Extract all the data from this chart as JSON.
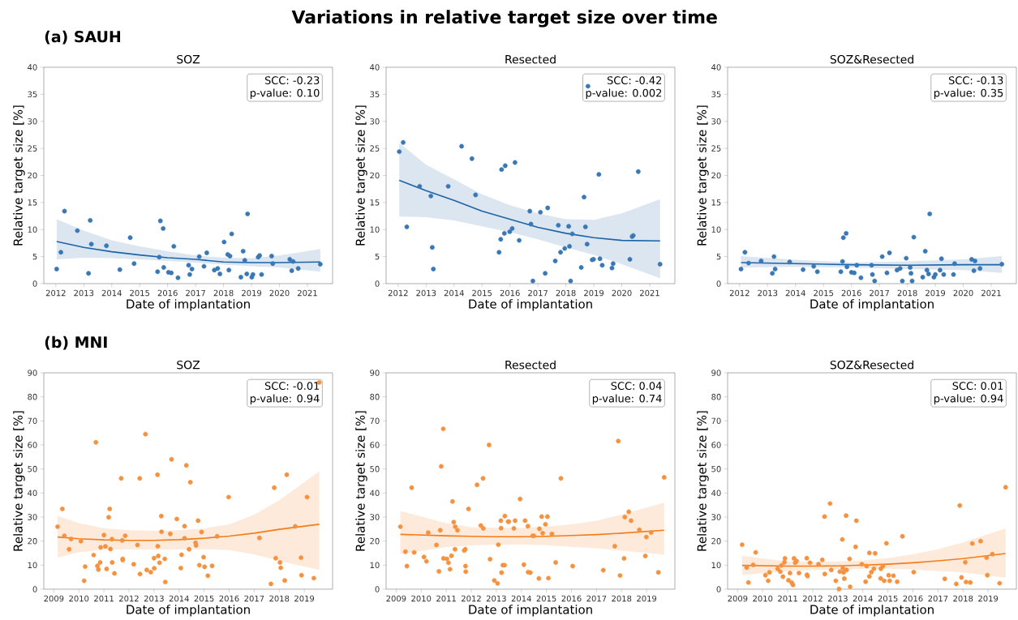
{
  "chart_data": [
    {
      "type": "scatter",
      "title": "SOZ",
      "xlabel": "Date of implantation",
      "ylabel": "Relative target size [%]",
      "xlim": [
        2011.57,
        2021.9
      ],
      "ylim": [
        0,
        40
      ],
      "xticks": [
        2012,
        2013,
        2014,
        2015,
        2016,
        2017,
        2018,
        2019,
        2020,
        2021
      ],
      "yticks": [
        0,
        5,
        10,
        15,
        20,
        25,
        30,
        35,
        40
      ],
      "annotations": [
        "Variations in relative target size over time",
        "(a) SAUH",
        "SCC: -0.23",
        "p-value: 0.10"
      ],
      "series": [
        {
          "color": "#3a78b5",
          "marker": "circle",
          "x": [
            2012.03,
            2012.18,
            2012.31,
            2012.77,
            2013.17,
            2013.23,
            2013.27,
            2013.81,
            2014.29,
            2014.66,
            2014.8,
            2015.64,
            2015.7,
            2015.74,
            2015.84,
            2015.86,
            2016.03,
            2016.13,
            2016.22,
            2016.37,
            2016.75,
            2016.79,
            2016.87,
            2017.13,
            2017.3,
            2017.4,
            2017.67,
            2017.79,
            2017.87,
            2018.02,
            2018.15,
            2018.19,
            2018.23,
            2018.29,
            2018.62,
            2018.7,
            2018.76,
            2018.83,
            2018.86,
            2019.01,
            2019.05,
            2019.24,
            2019.29,
            2019.36,
            2019.72,
            2019.76,
            2020.37,
            2020.44,
            2020.49,
            2020.67,
            2021.46
          ],
          "values": [
            2.7,
            5.8,
            13.4,
            9.8,
            1.9,
            11.7,
            7.3,
            7.0,
            2.6,
            8.5,
            3.7,
            2.2,
            4.9,
            11.6,
            10.2,
            3.0,
            2.1,
            2.0,
            6.9,
            1.1,
            3.4,
            1.7,
            2.7,
            5.0,
            3.2,
            5.7,
            2.5,
            2.8,
            1.8,
            7.7,
            5.4,
            2.5,
            5.1,
            9.2,
            1.2,
            6.0,
            4.3,
            1.8,
            12.9,
            1.2,
            1.7,
            4.9,
            5.2,
            1.7,
            5.1,
            3.7,
            4.5,
            2.4,
            4.1,
            2.8,
            3.6
          ]
        },
        {
          "type": "line",
          "color": "#1c64a6",
          "marker": "none",
          "line_style": "solid",
          "x": [
            2012.03,
            2013,
            2014,
            2015,
            2016,
            2017,
            2018,
            2019,
            2020,
            2021.46
          ],
          "values": [
            7.8,
            6.7,
            5.9,
            5.3,
            4.8,
            4.5,
            4.0,
            3.9,
            3.9,
            4.0
          ],
          "lower": [
            4.5,
            4.8,
            4.7,
            4.5,
            4.2,
            3.9,
            3.5,
            3.2,
            3.0,
            2.2
          ],
          "upper": [
            11.9,
            9.8,
            8.0,
            6.9,
            6.0,
            5.2,
            4.8,
            4.7,
            5.2,
            6.4
          ]
        }
      ]
    },
    {
      "type": "scatter",
      "title": "Resected",
      "xlabel": "Date of implantation",
      "ylabel": "Relative target size [%]",
      "xlim": [
        2011.57,
        2021.9
      ],
      "ylim": [
        0,
        40
      ],
      "xticks": [
        2012,
        2013,
        2014,
        2015,
        2016,
        2017,
        2018,
        2019,
        2020,
        2021
      ],
      "yticks": [
        0,
        5,
        10,
        15,
        20,
        25,
        30,
        35,
        40
      ],
      "annotations": [
        "SCC: -0.42",
        "p-value: 0.002"
      ],
      "series": [
        {
          "color": "#3a78b5",
          "marker": "circle",
          "x": [
            2012.04,
            2012.18,
            2012.31,
            2012.77,
            2013.17,
            2013.22,
            2013.26,
            2013.79,
            2014.27,
            2014.64,
            2014.77,
            2015.61,
            2015.67,
            2015.7,
            2015.8,
            2015.83,
            2015.99,
            2016.08,
            2016.18,
            2016.33,
            2016.71,
            2016.75,
            2016.82,
            2017.09,
            2017.26,
            2017.35,
            2017.62,
            2017.73,
            2017.81,
            2017.96,
            2018.1,
            2018.13,
            2018.17,
            2018.23,
            2018.55,
            2018.65,
            2018.7,
            2018.76,
            2018.79,
            2018.94,
            2018.99,
            2019.18,
            2019.22,
            2019.3,
            2019.65,
            2019.69,
            2020.29,
            2020.37,
            2020.41,
            2020.59,
            2021.37
          ],
          "values": [
            24.4,
            26.1,
            10.5,
            18.0,
            16.2,
            6.7,
            2.7,
            18.0,
            25.4,
            23.1,
            16.4,
            5.8,
            8.2,
            21.1,
            9.3,
            21.8,
            9.6,
            10.2,
            22.4,
            8.0,
            13.4,
            11.0,
            0.5,
            13.2,
            1.9,
            14.0,
            4.2,
            10.8,
            5.8,
            6.5,
            10.6,
            6.9,
            0.5,
            9.2,
            3.0,
            16.0,
            10.5,
            7.3,
            36.5,
            4.4,
            4.5,
            20.2,
            4.6,
            3.4,
            2.9,
            3.7,
            4.5,
            8.7,
            8.9,
            20.7,
            3.6
          ]
        },
        {
          "type": "line",
          "color": "#1c64a6",
          "marker": "none",
          "line_style": "solid",
          "x": [
            2012.04,
            2013,
            2014,
            2015,
            2016,
            2017,
            2018,
            2019,
            2020,
            2021.37
          ],
          "values": [
            19.1,
            17.2,
            15.4,
            13.4,
            11.9,
            10.4,
            9.3,
            8.5,
            8.0,
            7.9
          ],
          "lower": [
            12.4,
            12.3,
            11.7,
            10.6,
            9.5,
            8.2,
            6.7,
            5.3,
            3.6,
            1.0
          ],
          "upper": [
            26.0,
            22.0,
            19.3,
            16.5,
            14.5,
            13.0,
            11.9,
            11.8,
            13.0,
            15.6
          ]
        }
      ]
    },
    {
      "type": "scatter",
      "title": "SOZ&Resected",
      "xlabel": "Date of implantation",
      "ylabel": "Relative target size [%]",
      "xlim": [
        2011.57,
        2021.9
      ],
      "ylim": [
        0,
        40
      ],
      "xticks": [
        2012,
        2013,
        2014,
        2015,
        2016,
        2017,
        2018,
        2019,
        2020,
        2021
      ],
      "yticks": [
        0,
        5,
        10,
        15,
        20,
        25,
        30,
        35,
        40
      ],
      "annotations": [
        "SCC: -0.13",
        "p-value: 0.35"
      ],
      "series": [
        {
          "color": "#3a78b5",
          "marker": "circle",
          "x": [
            2012.05,
            2012.19,
            2012.32,
            2012.77,
            2013.17,
            2013.23,
            2013.27,
            2013.79,
            2014.27,
            2014.65,
            2014.78,
            2015.62,
            2015.68,
            2015.71,
            2015.81,
            2015.84,
            2016.0,
            2016.1,
            2016.19,
            2016.34,
            2016.72,
            2016.75,
            2016.83,
            2017.1,
            2017.27,
            2017.36,
            2017.63,
            2017.74,
            2017.82,
            2017.96,
            2018.1,
            2018.13,
            2018.17,
            2018.23,
            2018.55,
            2018.64,
            2018.7,
            2018.76,
            2018.8,
            2018.95,
            2019.0,
            2019.17,
            2019.22,
            2019.3,
            2019.65,
            2019.69,
            2020.3,
            2020.38,
            2020.42,
            2020.6,
            2021.38
          ],
          "values": [
            2.7,
            5.8,
            3.8,
            4.2,
            1.9,
            5.0,
            2.7,
            4.0,
            2.6,
            3.2,
            2.2,
            2.2,
            4.1,
            8.5,
            9.3,
            3.1,
            2.1,
            2.0,
            3.4,
            1.1,
            3.4,
            1.7,
            0.5,
            5.0,
            2.0,
            5.7,
            2.5,
            2.8,
            0.5,
            4.7,
            3.0,
            1.9,
            0.5,
            8.6,
            1.2,
            6.0,
            2.5,
            1.8,
            12.9,
            1.2,
            1.7,
            2.5,
            4.6,
            1.7,
            1.7,
            3.7,
            4.5,
            2.4,
            4.2,
            2.8,
            3.6
          ]
        },
        {
          "type": "line",
          "color": "#1c64a6",
          "marker": "none",
          "line_style": "solid",
          "x": [
            2012.05,
            2014,
            2016,
            2018,
            2020,
            2021.38
          ],
          "values": [
            3.9,
            3.7,
            3.5,
            3.4,
            3.5,
            3.5
          ],
          "lower": [
            3.0,
            3.1,
            3.0,
            2.7,
            2.5,
            2.0
          ],
          "upper": [
            5.1,
            4.4,
            3.9,
            4.1,
            4.5,
            5.1
          ]
        }
      ]
    },
    {
      "type": "scatter",
      "title": "SOZ",
      "xlabel": "Date of implantation",
      "ylabel": "Relative target size [%]",
      "xlim": [
        2008.6,
        2020.13
      ],
      "ylim": [
        0,
        90
      ],
      "xticks": [
        2009,
        2010,
        2011,
        2012,
        2013,
        2014,
        2015,
        2016,
        2017,
        2018,
        2019
      ],
      "yticks": [
        0,
        10,
        20,
        30,
        40,
        50,
        60,
        70,
        80,
        90
      ],
      "annotations": [
        "(b) MNI",
        "SCC: -0.01",
        "p-value: 0.94"
      ],
      "series": [
        {
          "color": "#f6923f",
          "marker": "circle",
          "x": [
            2009.15,
            2009.34,
            2009.42,
            2009.61,
            2009.69,
            2010.08,
            2010.21,
            2010.25,
            2010.59,
            2010.68,
            2010.74,
            2010.78,
            2010.85,
            2010.87,
            2011.0,
            2011.06,
            2011.11,
            2011.19,
            2011.23,
            2011.26,
            2011.32,
            2011.33,
            2011.42,
            2011.69,
            2011.73,
            2011.75,
            2011.75,
            2011.85,
            2012.19,
            2012.34,
            2012.43,
            2012.44,
            2012.66,
            2012.71,
            2012.87,
            2013.0,
            2013.01,
            2013.14,
            2013.15,
            2013.17,
            2013.22,
            2013.29,
            2013.3,
            2013.43,
            2013.45,
            2013.65,
            2013.7,
            2013.91,
            2014.07,
            2014.1,
            2014.22,
            2014.22,
            2014.29,
            2014.4,
            2014.45,
            2014.66,
            2014.68,
            2014.76,
            2014.81,
            2014.9,
            2014.98,
            2015.02,
            2015.15,
            2015.32,
            2015.52,
            2015.98,
            2017.21,
            2017.67,
            2017.8,
            2017.86,
            2018.03,
            2018.06,
            2018.22,
            2018.3,
            2018.64,
            2018.87,
            2018.89,
            2019.11,
            2019.38,
            2019.6
          ],
          "values": [
            26.0,
            33.4,
            22.2,
            16.6,
            20.9,
            20.0,
            3.5,
            9.4,
            14.2,
            61.1,
            9.7,
            8.2,
            11.1,
            17.4,
            22.5,
            17.8,
            8.4,
            29.9,
            33.4,
            16.7,
            20.8,
            11.1,
            6.6,
            46.1,
            20.3,
            12.6,
            12.1,
            22.2,
            10.4,
            18.4,
            46.1,
            6.3,
            64.5,
            8.0,
            7.1,
            12.9,
            8.7,
            47.6,
            17.9,
            13.8,
            11.0,
            30.4,
            23.9,
            12.6,
            3.0,
            23.0,
            54.0,
            29.2,
            8.8,
            14.3,
            26.2,
            21.2,
            51.5,
            16.6,
            44.5,
            19.3,
            18.2,
            28.5,
            10.0,
            23.8,
            13.3,
            9.3,
            5.6,
            9.7,
            22.0,
            38.3,
            21.3,
            2.2,
            42.2,
            12.9,
            11.1,
            8.9,
            3.6,
            47.6,
            26.1,
            13.1,
            5.8,
            38.3,
            4.6,
            86.0
          ]
        },
        {
          "type": "line",
          "color": "#f47d1b",
          "marker": "none",
          "line_style": "solid",
          "x": [
            2009.15,
            2010,
            2011,
            2012,
            2013,
            2014,
            2015,
            2016,
            2017,
            2018,
            2019.6
          ],
          "values": [
            21.7,
            21.0,
            20.5,
            20.3,
            20.3,
            20.6,
            21.2,
            22.1,
            23.3,
            24.9,
            27.0
          ],
          "lower": [
            13.1,
            15.3,
            16.4,
            16.6,
            16.4,
            16.5,
            16.6,
            16.3,
            14.5,
            11.8,
            8.0
          ],
          "upper": [
            30.5,
            27.5,
            25.4,
            24.5,
            24.3,
            24.5,
            25.3,
            27.0,
            31.0,
            37.0,
            49.0
          ]
        }
      ]
    },
    {
      "type": "scatter",
      "title": "Resected",
      "xlabel": "Date of implantation",
      "ylabel": "Relative target size [%]",
      "xlim": [
        2008.6,
        2020.13
      ],
      "ylim": [
        0,
        90
      ],
      "xticks": [
        2009,
        2010,
        2011,
        2012,
        2013,
        2014,
        2015,
        2016,
        2017,
        2018,
        2019
      ],
      "yticks": [
        0,
        10,
        20,
        30,
        40,
        50,
        60,
        70,
        80,
        90
      ],
      "annotations": [
        "SCC: 0.04",
        "p-value: 0.74"
      ],
      "series": [
        {
          "color": "#f6923f",
          "marker": "circle",
          "x": [
            2009.17,
            2009.37,
            2009.43,
            2009.62,
            2009.72,
            2010.11,
            2010.21,
            2010.28,
            2010.61,
            2010.71,
            2010.76,
            2010.8,
            2010.88,
            2010.89,
            2011.03,
            2011.09,
            2011.15,
            2011.21,
            2011.25,
            2011.3,
            2011.35,
            2011.36,
            2011.45,
            2011.72,
            2011.76,
            2011.77,
            2011.78,
            2011.89,
            2012.23,
            2012.38,
            2012.47,
            2012.48,
            2012.71,
            2012.75,
            2012.92,
            2013.05,
            2013.08,
            2013.18,
            2013.19,
            2013.21,
            2013.26,
            2013.33,
            2013.34,
            2013.47,
            2013.5,
            2013.7,
            2013.75,
            2013.95,
            2014.1,
            2014.15,
            2014.26,
            2014.27,
            2014.36,
            2014.45,
            2014.5,
            2014.7,
            2014.72,
            2014.81,
            2014.85,
            2014.96,
            2015.04,
            2015.08,
            2015.22,
            2015.37,
            2015.58,
            2016.05,
            2017.27,
            2017.73,
            2017.87,
            2017.94,
            2018.1,
            2018.13,
            2018.29,
            2018.38,
            2018.71,
            2018.95,
            2018.99,
            2019.18,
            2019.47,
            2019.7
          ],
          "values": [
            26.0,
            15.6,
            9.6,
            42.2,
            15.3,
            13.4,
            11.6,
            23.5,
            18.4,
            7.4,
            24.5,
            51.1,
            66.7,
            12.8,
            12.6,
            11.0,
            8.3,
            13.9,
            36.5,
            27.9,
            16.6,
            26.0,
            24.5,
            16.1,
            16.6,
            9.6,
            7.3,
            33.4,
            43.4,
            26.5,
            46.1,
            25.3,
            60.0,
            12.5,
            3.6,
            2.4,
            18.5,
            28.5,
            25.4,
            6.9,
            10.0,
            10.0,
            30.4,
            28.1,
            28.1,
            25.3,
            28.5,
            37.5,
            10.2,
            28.5,
            26.2,
            7.1,
            6.9,
            22.2,
            22.2,
            4.5,
            25.1,
            30.2,
            23.3,
            27.0,
            30.2,
            4.6,
            23.0,
            11.1,
            46.1,
            9.6,
            7.9,
            17.9,
            61.6,
            5.7,
            12.8,
            30.0,
            32.2,
            28.5,
            24.7,
            13.8,
            21.7,
            23.6,
            7.0,
            46.5
          ]
        },
        {
          "type": "line",
          "color": "#f47d1b",
          "marker": "none",
          "line_style": "solid",
          "x": [
            2009.17,
            2011,
            2012,
            2013,
            2014,
            2015,
            2016,
            2017,
            2018,
            2019.7
          ],
          "values": [
            22.8,
            22.2,
            22.0,
            21.8,
            21.8,
            22.0,
            22.3,
            22.7,
            23.3,
            24.5
          ],
          "lower": [
            14.6,
            17.5,
            18.2,
            18.5,
            18.6,
            18.3,
            17.6,
            17.0,
            16.0,
            14.4
          ],
          "upper": [
            32.5,
            27.5,
            25.8,
            25.5,
            25.5,
            26.0,
            27.0,
            28.5,
            31.0,
            36.0
          ]
        }
      ]
    },
    {
      "type": "scatter",
      "title": "SOZ&Resected",
      "xlabel": "Date of implantation",
      "ylabel": "Relative target size [%]",
      "xlim": [
        2008.6,
        2020.13
      ],
      "ylim": [
        0,
        90
      ],
      "xticks": [
        2009,
        2010,
        2011,
        2012,
        2013,
        2014,
        2015,
        2016,
        2017,
        2018,
        2019
      ],
      "yticks": [
        0,
        10,
        20,
        30,
        40,
        50,
        60,
        70,
        80,
        90
      ],
      "annotations": [
        "SCC: 0.01",
        "p-value: 0.94"
      ],
      "series": [
        {
          "color": "#f6923f",
          "marker": "circle",
          "x": [
            2009.18,
            2009.36,
            2009.43,
            2009.62,
            2009.72,
            2010.11,
            2010.22,
            2010.27,
            2010.6,
            2010.7,
            2010.75,
            2010.81,
            2010.87,
            2010.89,
            2011.03,
            2011.09,
            2011.16,
            2011.21,
            2011.25,
            2011.3,
            2011.35,
            2011.45,
            2011.76,
            2011.77,
            2011.79,
            2011.89,
            2012.23,
            2012.38,
            2012.47,
            2012.48,
            2012.69,
            2012.74,
            2012.92,
            2013.05,
            2013.08,
            2013.18,
            2013.2,
            2013.23,
            2013.26,
            2013.33,
            2013.35,
            2013.47,
            2013.49,
            2013.71,
            2013.74,
            2013.96,
            2014.11,
            2014.15,
            2014.26,
            2014.26,
            2014.34,
            2014.44,
            2014.49,
            2014.71,
            2014.72,
            2014.8,
            2014.85,
            2014.94,
            2015.03,
            2015.07,
            2015.22,
            2015.37,
            2015.58,
            2016.03,
            2017.27,
            2017.73,
            2017.87,
            2017.94,
            2018.09,
            2018.12,
            2018.29,
            2018.37,
            2018.7,
            2018.94,
            2018.97,
            2019.17,
            2019.46,
            2019.7
          ],
          "values": [
            18.5,
            9.0,
            2.8,
            10.1,
            15.3,
            5.8,
            3.5,
            7.0,
            8.5,
            7.3,
            9.9,
            5.2,
            11.2,
            12.8,
            3.7,
            6.7,
            2.7,
            1.8,
            12.8,
            11.0,
            11.7,
            6.7,
            12.9,
            6.0,
            5.5,
            11.0,
            10.4,
            12.2,
            30.2,
            6.3,
            35.6,
            8.0,
            3.5,
            0.1,
            7.3,
            20.7,
            8.8,
            7.0,
            4.4,
            30.6,
            8.0,
            12.6,
            1.0,
            17.6,
            28.5,
            10.4,
            3.1,
            9.6,
            15.1,
            5.3,
            7.1,
            8.5,
            14.9,
            4.5,
            8.5,
            9.6,
            3.5,
            19.1,
            5.8,
            3.5,
            5.6,
            3.1,
            22.0,
            7.1,
            4.3,
            2.2,
            34.8,
            4.9,
            11.2,
            3.0,
            2.8,
            19.0,
            20.0,
            13.1,
            5.8,
            14.6,
            2.5,
            42.4
          ]
        },
        {
          "type": "line",
          "color": "#f47d1b",
          "marker": "none",
          "line_style": "solid",
          "x": [
            2009.18,
            2011,
            2012,
            2013,
            2014,
            2015,
            2016,
            2017,
            2018,
            2019.7
          ],
          "values": [
            9.9,
            9.6,
            9.6,
            9.7,
            10.0,
            10.4,
            11.0,
            11.8,
            12.7,
            14.8
          ],
          "lower": [
            5.9,
            7.5,
            8.0,
            8.2,
            8.5,
            8.5,
            8.2,
            7.6,
            7.0,
            4.8
          ],
          "upper": [
            13.9,
            11.5,
            11.4,
            11.5,
            12.0,
            13.0,
            14.5,
            16.6,
            19.5,
            25.3
          ]
        }
      ]
    }
  ]
}
